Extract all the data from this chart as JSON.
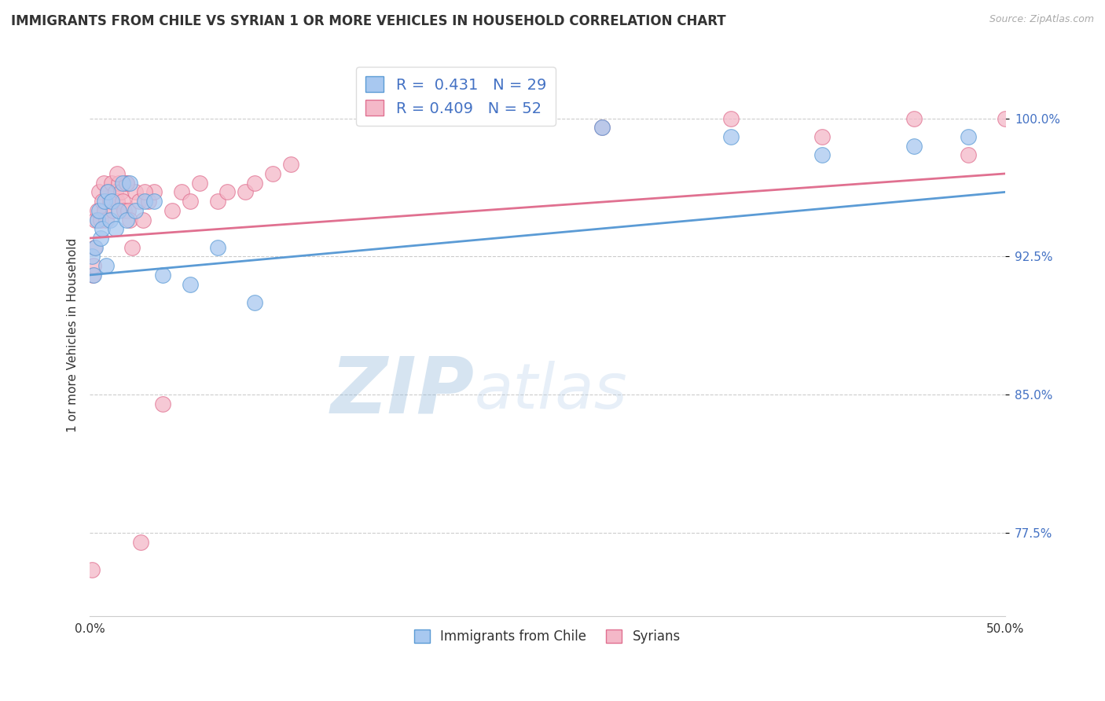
{
  "title": "IMMIGRANTS FROM CHILE VS SYRIAN 1 OR MORE VEHICLES IN HOUSEHOLD CORRELATION CHART",
  "source": "Source: ZipAtlas.com",
  "ylabel": "1 or more Vehicles in Household",
  "xlim": [
    0.0,
    50.0
  ],
  "ylim": [
    73.0,
    103.5
  ],
  "yticks": [
    77.5,
    85.0,
    92.5,
    100.0
  ],
  "ytick_labels": [
    "77.5%",
    "85.0%",
    "92.5%",
    "100.0%"
  ],
  "chile_color": "#a8c8f0",
  "chile_color_dark": "#5b9bd5",
  "syria_color": "#f4b8c8",
  "syria_color_dark": "#e07090",
  "R_chile": 0.431,
  "N_chile": 29,
  "R_syria": 0.409,
  "N_syria": 52,
  "watermark_zip": "ZIP",
  "watermark_atlas": "atlas",
  "legend_chile": "Immigrants from Chile",
  "legend_syria": "Syrians",
  "chile_x": [
    0.1,
    0.2,
    0.3,
    0.4,
    0.5,
    0.6,
    0.7,
    0.8,
    0.9,
    1.0,
    1.1,
    1.2,
    1.4,
    1.6,
    1.8,
    2.0,
    2.2,
    2.5,
    3.0,
    3.5,
    4.0,
    5.5,
    7.0,
    9.0,
    28.0,
    35.0,
    40.0,
    45.0,
    48.0
  ],
  "chile_y": [
    92.5,
    91.5,
    93.0,
    94.5,
    95.0,
    93.5,
    94.0,
    95.5,
    92.0,
    96.0,
    94.5,
    95.5,
    94.0,
    95.0,
    96.5,
    94.5,
    96.5,
    95.0,
    95.5,
    95.5,
    91.5,
    91.0,
    93.0,
    90.0,
    99.5,
    99.0,
    98.0,
    98.5,
    99.0
  ],
  "syria_x": [
    0.1,
    0.15,
    0.2,
    0.25,
    0.3,
    0.4,
    0.5,
    0.6,
    0.7,
    0.75,
    0.8,
    0.9,
    1.0,
    1.1,
    1.2,
    1.3,
    1.4,
    1.5,
    1.6,
    1.7,
    1.8,
    1.9,
    2.0,
    2.1,
    2.2,
    2.3,
    2.5,
    2.7,
    2.9,
    3.2,
    3.5,
    4.0,
    4.5,
    5.0,
    5.5,
    6.0,
    7.0,
    7.5,
    8.5,
    9.0,
    10.0,
    11.0,
    28.0,
    35.0,
    40.0,
    45.0,
    48.0,
    50.0,
    3.0,
    2.8,
    2.0,
    1.5
  ],
  "syria_y": [
    75.5,
    91.5,
    92.0,
    93.0,
    94.5,
    95.0,
    96.0,
    94.5,
    95.5,
    96.5,
    95.0,
    94.5,
    96.0,
    95.5,
    96.5,
    95.0,
    96.0,
    95.5,
    96.5,
    96.0,
    95.5,
    95.0,
    96.5,
    95.0,
    94.5,
    93.0,
    96.0,
    95.5,
    94.5,
    95.5,
    96.0,
    84.5,
    95.0,
    96.0,
    95.5,
    96.5,
    95.5,
    96.0,
    96.0,
    96.5,
    97.0,
    97.5,
    99.5,
    100.0,
    99.0,
    100.0,
    98.0,
    100.0,
    96.0,
    77.0,
    96.5,
    97.0
  ]
}
